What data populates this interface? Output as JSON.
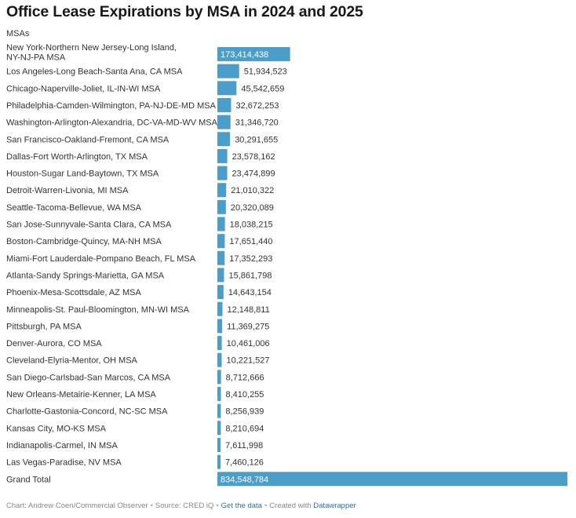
{
  "title": "Office Lease Expirations by MSA in 2024 and 2025",
  "column_header": "MSAs",
  "footer": {
    "chart_credit": "Chart: Andrew Coen/Commercial Observer",
    "source": "Source: CRED iQ",
    "get_data": "Get the data",
    "created_with": "Created with",
    "tool": "Datawrapper"
  },
  "colors": {
    "bar": "#4a9ec9",
    "text": "#333333",
    "label_inside": "#ffffff"
  },
  "chart_data": {
    "type": "bar",
    "orientation": "horizontal",
    "categories": [
      "New York-Northern New Jersey-Long Island, NY-NJ-PA MSA",
      "Los Angeles-Long Beach-Santa Ana, CA MSA",
      "Chicago-Naperville-Joliet, IL-IN-WI MSA",
      "Philadelphia-Camden-Wilmington, PA-NJ-DE-MD MSA",
      "Washington-Arlington-Alexandria, DC-VA-MD-WV MSA",
      "San Francisco-Oakland-Fremont, CA MSA",
      "Dallas-Fort Worth-Arlington, TX MSA",
      "Houston-Sugar Land-Baytown, TX MSA",
      "Detroit-Warren-Livonia, MI MSA",
      "Seattle-Tacoma-Bellevue, WA MSA",
      "San Jose-Sunnyvale-Santa Clara, CA MSA",
      "Boston-Cambridge-Quincy, MA-NH MSA",
      "Miami-Fort Lauderdale-Pompano Beach, FL MSA",
      "Atlanta-Sandy Springs-Marietta, GA MSA",
      "Phoenix-Mesa-Scottsdale, AZ MSA",
      "Minneapolis-St. Paul-Bloomington, MN-WI MSA",
      "Pittsburgh, PA MSA",
      "Denver-Aurora, CO MSA",
      "Cleveland-Elyria-Mentor, OH MSA",
      "San Diego-Carlsbad-San Marcos, CA MSA",
      "New Orleans-Metairie-Kenner, LA MSA",
      "Charlotte-Gastonia-Concord, NC-SC MSA",
      "Kansas City, MO-KS MSA",
      "Indianapolis-Carmel, IN MSA",
      "Las Vegas-Paradise, NV MSA",
      "Grand Total"
    ],
    "values": [
      173414438,
      51934523,
      45542659,
      32672253,
      31346720,
      30291655,
      23578162,
      23474899,
      21010322,
      20320089,
      18038215,
      17651440,
      17352293,
      15861798,
      14643154,
      12148811,
      11369275,
      10461006,
      10221527,
      8712666,
      8410255,
      8256939,
      8210694,
      7611998,
      7460126,
      834548784
    ],
    "value_labels": [
      "173,414,438",
      "51,934,523",
      "45,542,659",
      "32,672,253",
      "31,346,720",
      "30,291,655",
      "23,578,162",
      "23,474,899",
      "21,010,322",
      "20,320,089",
      "18,038,215",
      "17,651,440",
      "17,352,293",
      "15,861,798",
      "14,643,154",
      "12,148,811",
      "11,369,275",
      "10,461,006",
      "10,221,527",
      "8,712,666",
      "8,410,255",
      "8,256,939",
      "8,210,694",
      "7,611,998",
      "7,460,126",
      "834,548,784"
    ],
    "xlim": [
      0,
      834548784
    ],
    "grid": false,
    "legend": "none"
  }
}
